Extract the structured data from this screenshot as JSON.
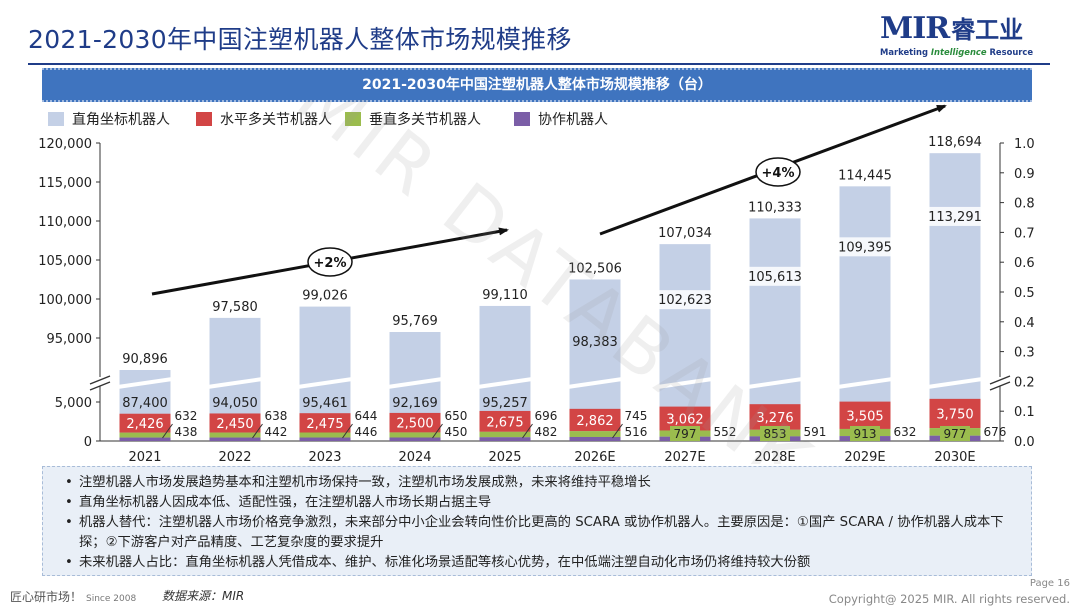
{
  "header": {
    "title": "2021-2030年中国注塑机器人整体市场规模推移",
    "logo_mir": "MIR",
    "logo_cn": "睿工业",
    "logo_tag_left": "Marketing ",
    "logo_tag_mid": "Intelligence",
    "logo_tag_right": " Resource"
  },
  "banner": "2021-2030年中国注塑机器人整体市场规模推移（台）",
  "watermark": "MIR DATABANK",
  "colors": {
    "cartesian": "#c4d0e6",
    "horizontal": "#d24545",
    "vertical": "#9bbc4e",
    "cobot": "#7b5ea7",
    "accent": "#1f3c88"
  },
  "chart_data": {
    "type": "bar",
    "stacked": true,
    "categories": [
      "2021",
      "2022",
      "2023",
      "2024",
      "2025",
      "2026E",
      "2027E",
      "2028E",
      "2029E",
      "2030E"
    ],
    "series": [
      {
        "name": "直角坐标机器人",
        "values": [
          87400,
          94050,
          95461,
          92169,
          95257,
          98383,
          102623,
          105613,
          109395,
          113291
        ]
      },
      {
        "name": "水平多关节机器人",
        "values": [
          2426,
          2450,
          2475,
          2500,
          2675,
          2862,
          3062,
          3276,
          3505,
          3750
        ]
      },
      {
        "name": "垂直多关节机器人",
        "values": [
          632,
          638,
          644,
          650,
          696,
          745,
          797,
          853,
          913,
          977
        ]
      },
      {
        "name": "协作机器人",
        "values": [
          438,
          442,
          446,
          450,
          482,
          516,
          552,
          591,
          632,
          676
        ]
      }
    ],
    "totals": [
      90896,
      97580,
      99026,
      95769,
      99110,
      102506,
      107034,
      110333,
      114445,
      118694
    ],
    "total_labels": [
      "90,896",
      "97,580",
      "99,026",
      "95,769",
      "99,110",
      "102,506",
      "107,034",
      "110,333",
      "114,445",
      "118,694"
    ],
    "series_labels": [
      [
        "87,400",
        "94,050",
        "95,461",
        "92,169",
        "95,257",
        "98,383",
        "102,623",
        "105,613",
        "109,395",
        "113,291"
      ],
      [
        "2,426",
        "2,450",
        "2,475",
        "2,500",
        "2,675",
        "2,862",
        "3,062",
        "3,276",
        "3,505",
        "3,750"
      ],
      [
        "632",
        "638",
        "644",
        "650",
        "696",
        "745",
        "797",
        "853",
        "913",
        "977"
      ],
      [
        "438",
        "442",
        "446",
        "450",
        "482",
        "516",
        "552",
        "591",
        "632",
        "676"
      ]
    ],
    "y_axis": {
      "broken": true,
      "lower_range": [
        0,
        5000
      ],
      "upper_range": [
        90000,
        120000
      ],
      "ticks_lower": [
        0,
        5000
      ],
      "ticks_upper": [
        95000,
        100000,
        105000,
        110000,
        115000,
        120000
      ],
      "tick_labels_lower": [
        "0",
        "5,000"
      ],
      "tick_labels_upper": [
        "95,000",
        "100,000",
        "105,000",
        "110,000",
        "115,000",
        "120,000"
      ]
    },
    "y2_axis": {
      "ylim": [
        0,
        1.0
      ],
      "ticks": [
        0.0,
        0.1,
        0.2,
        0.3,
        0.4,
        0.5,
        0.6,
        0.7,
        0.8,
        0.9,
        1.0
      ],
      "tick_labels": [
        "0.0",
        "0.1",
        "0.2",
        "0.3",
        "0.4",
        "0.5",
        "0.6",
        "0.7",
        "0.8",
        "0.9",
        "1.0"
      ]
    },
    "legend_position": "top-left",
    "grid": false,
    "annotations": [
      {
        "text": "+2%",
        "from": "2021",
        "to": "2025"
      },
      {
        "text": "+4%",
        "from": "2026E",
        "to": "2030E"
      }
    ]
  },
  "notes": [
    "注塑机器人市场发展趋势基本和注塑机市场保持一致，注塑机市场发展成熟，未来将维持平稳增长",
    "直角坐标机器人因成本低、适配性强，在注塑机器人市场长期占据主导",
    "机器人替代：注塑机器人市场价格竞争激烈，未来部分中小企业会转向性价比更高的 SCARA 或协作机器人。主要原因是：①国产 SCARA / 协作机器人成本下探；②下游客户对产品精度、工艺复杂度的要求提升",
    "未来机器人占比：直角坐标机器人凭借成本、维护、标准化场景适配等核心优势，在中低端注塑自动化市场仍将维持较大份额"
  ],
  "footer": {
    "slogan": "匠心研市场！",
    "since": "Since 2008",
    "source": "数据来源：MIR",
    "page": "Page 16",
    "copyright": "Copyright@ 2025 MIR. All rights reserved."
  }
}
